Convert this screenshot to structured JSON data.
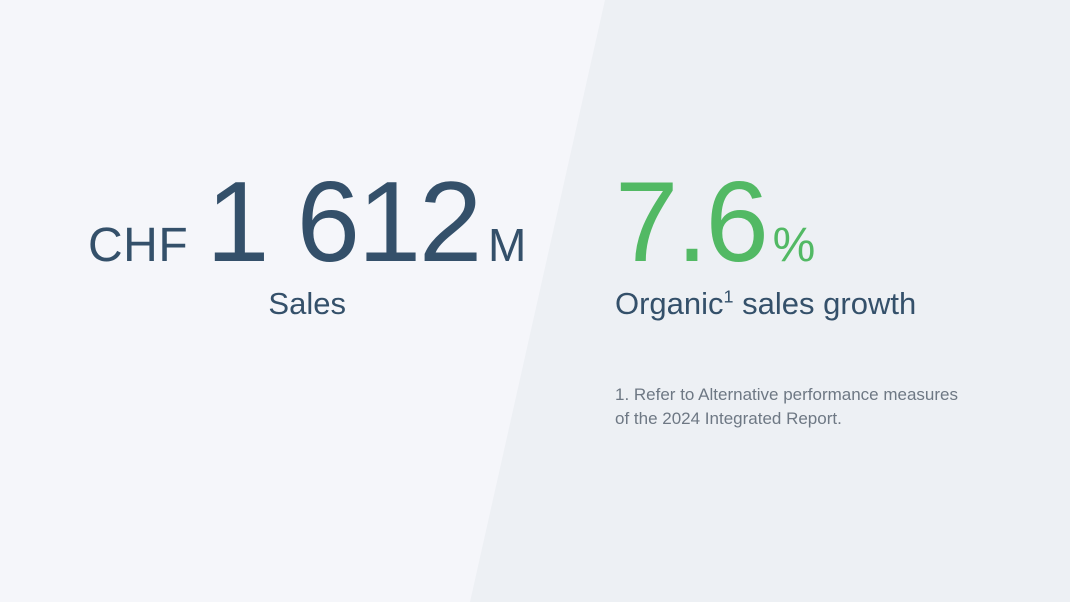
{
  "left_stat": {
    "currency": "CHF",
    "value": "1 612",
    "unit": "M",
    "label": "Sales"
  },
  "right_stat": {
    "value": "7.6",
    "unit": "%",
    "label_prefix": "Organic",
    "label_sup": "1",
    "label_suffix": " sales growth"
  },
  "footnote": "1. Refer to Alternative performance measures of the 2024 Integrated Report.",
  "colors": {
    "background_left": "#f5f6fa",
    "background_right": "#edf0f4",
    "primary_text": "#34506a",
    "accent_green": "#52b964",
    "footnote_gray": "#6e7884"
  }
}
